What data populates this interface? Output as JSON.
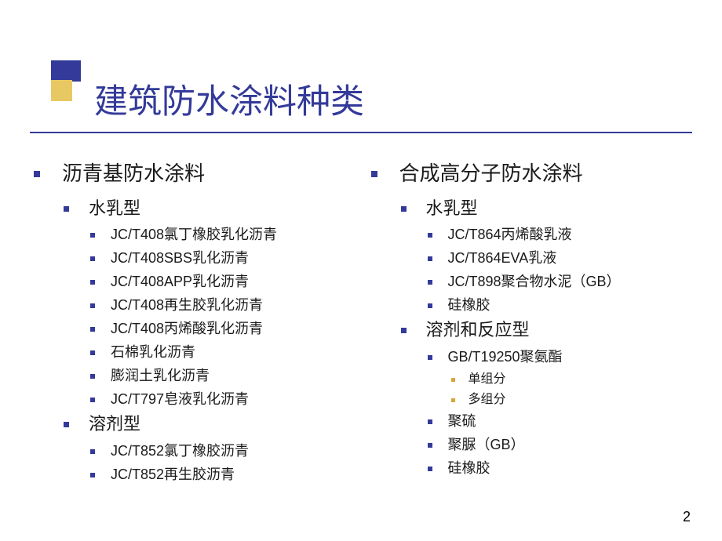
{
  "title": "建筑防水涂料种类",
  "colors": {
    "accent_blue": "#333a99",
    "accent_gold": "#d4a838",
    "accent_yellow": "#e8c862",
    "text": "#1a1a1a",
    "background": "#ffffff"
  },
  "page_number": "2",
  "left_column": {
    "heading": "沥青基防水涂料",
    "groups": [
      {
        "label": "水乳型",
        "items": [
          "JC/T408氯丁橡胶乳化沥青",
          "JC/T408SBS乳化沥青",
          "JC/T408APP乳化沥青",
          "JC/T408再生胶乳化沥青",
          "JC/T408丙烯酸乳化沥青",
          "石棉乳化沥青",
          "膨润土乳化沥青",
          "JC/T797皂液乳化沥青"
        ]
      },
      {
        "label": "溶剂型",
        "items": [
          "JC/T852氯丁橡胶沥青",
          "JC/T852再生胶沥青"
        ]
      }
    ]
  },
  "right_column": {
    "heading": "合成高分子防水涂料",
    "groups": [
      {
        "label": "水乳型",
        "items": [
          "JC/T864丙烯酸乳液",
          "JC/T864EVA乳液",
          "JC/T898聚合物水泥（GB）",
          "硅橡胶"
        ]
      },
      {
        "label": "溶剂和反应型",
        "items": [
          {
            "text": "GB/T19250聚氨酯",
            "sub": [
              "单组分",
              "多组分"
            ]
          },
          "聚硫",
          "聚脲（GB）",
          "硅橡胶"
        ]
      }
    ]
  }
}
